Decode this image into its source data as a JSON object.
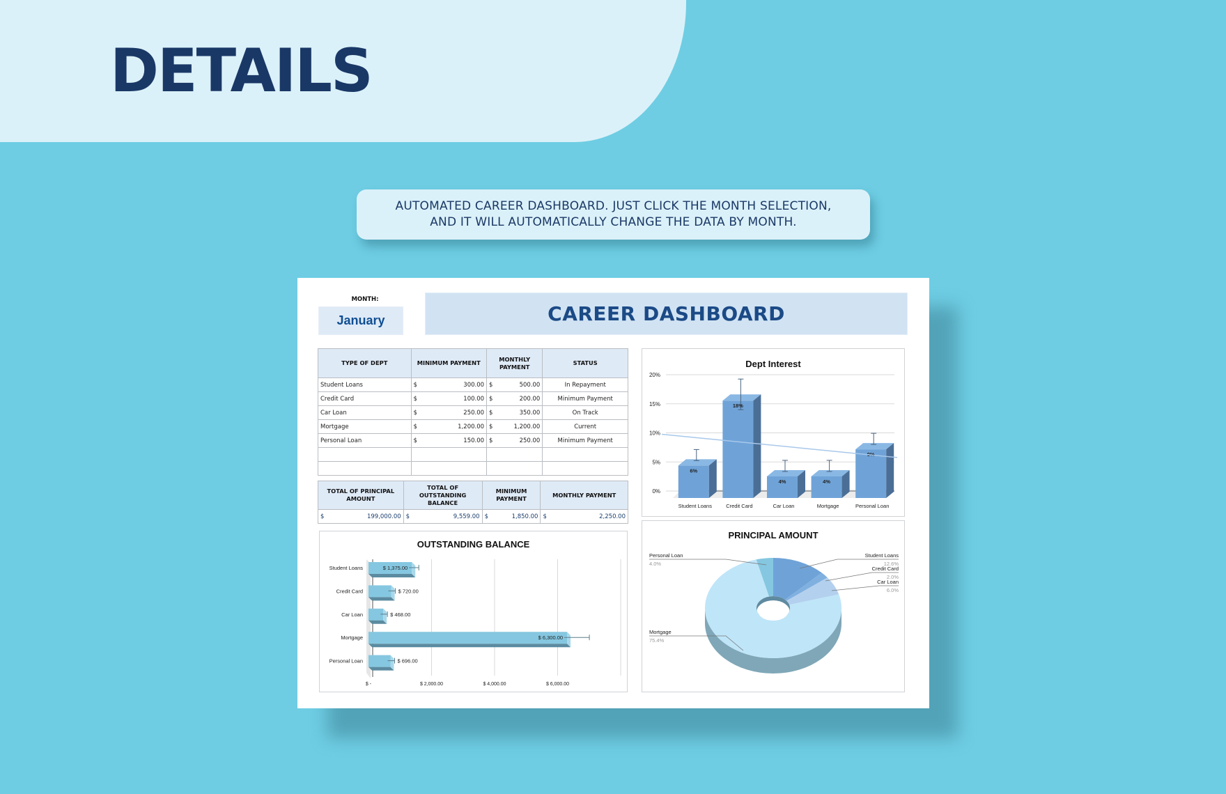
{
  "hero": {
    "title": "DETAILS"
  },
  "callout": {
    "line1": "AUTOMATED CAREER DASHBOARD. JUST CLICK THE MONTH SELECTION,",
    "line2": "AND IT WILL AUTOMATICALLY CHANGE THE DATA BY MONTH."
  },
  "dashboard": {
    "month_label": "MONTH:",
    "month_value": "January",
    "title": "CAREER DASHBOARD",
    "debt_table": {
      "headers": [
        "TYPE OF DEPT",
        "MINIMUM PAYMENT",
        "MONTHLY PAYMENT",
        "STATUS"
      ],
      "currency": "$",
      "rows": [
        {
          "type": "Student Loans",
          "min": "300.00",
          "monthly": "500.00",
          "status": "In Repayment"
        },
        {
          "type": "Credit Card",
          "min": "100.00",
          "monthly": "200.00",
          "status": "Minimum Payment"
        },
        {
          "type": "Car Loan",
          "min": "250.00",
          "monthly": "350.00",
          "status": "On Track"
        },
        {
          "type": "Mortgage",
          "min": "1,200.00",
          "monthly": "1,200.00",
          "status": "Current"
        },
        {
          "type": "Personal Loan",
          "min": "150.00",
          "monthly": "250.00",
          "status": "Minimum Payment"
        }
      ]
    },
    "summary_table": {
      "headers": [
        "TOTAL OF PRINCIPAL AMOUNT",
        "TOTAL OF OUTSTANDING BALANCE",
        "MINIMUM PAYMENT",
        "MONTHLY PAYMENT"
      ],
      "currency": "$",
      "values": [
        "199,000.00",
        "9,559.00",
        "1,850.00",
        "2,250.00"
      ]
    }
  },
  "colors": {
    "background": "#6ecde3",
    "hero_panel": "#dbf1f9",
    "navy": "#1a3866",
    "banner": "#d1e3f3",
    "bar_blue": "#6fa3d8",
    "bar_cyan": "#85c7e0"
  },
  "chart_data": [
    {
      "type": "bar",
      "title": "Dept Interest",
      "categories": [
        "Student Loans",
        "Credit Card",
        "Car Loan",
        "Mortgage",
        "Personal Loan"
      ],
      "values": [
        6,
        18,
        4,
        4,
        9
      ],
      "value_labels": [
        "6%",
        "18%",
        "4%",
        "4%",
        "9%"
      ],
      "ylabel": "",
      "xlabel": "",
      "yticks": [
        "0%",
        "5%",
        "10%",
        "15%",
        "20%"
      ],
      "ylim": [
        0,
        20
      ],
      "trendline": {
        "start": 10,
        "end": 6
      },
      "grid": true,
      "style": "3d-column with error bars"
    },
    {
      "type": "bar",
      "orientation": "horizontal",
      "title": "OUTSTANDING BALANCE",
      "categories": [
        "Student Loans",
        "Credit Card",
        "Car Loan",
        "Mortgage",
        "Personal Loan"
      ],
      "values": [
        1375,
        720,
        468,
        6300,
        696
      ],
      "value_labels": [
        "$ 1,375.00",
        "$ 720.00",
        "$ 468.00",
        "$ 6,300.00",
        "$ 696.00"
      ],
      "xticks": [
        "$ -",
        "$ 2,000.00",
        "$ 4,000.00",
        "$ 6,000.00"
      ],
      "xlim": [
        0,
        8000
      ],
      "grid": true
    },
    {
      "type": "pie",
      "title": "PRINCIPAL AMOUNT",
      "style": "3d-doughnut",
      "labels": [
        "Student Loans",
        "Credit Card",
        "Car Loan",
        "Mortgage",
        "Personal Loan"
      ],
      "values": [
        12.6,
        2.0,
        6.0,
        75.4,
        4.0
      ],
      "value_labels": [
        "12.6%",
        "2.0%",
        "6.0%",
        "75.4%",
        "4.0%"
      ]
    }
  ]
}
